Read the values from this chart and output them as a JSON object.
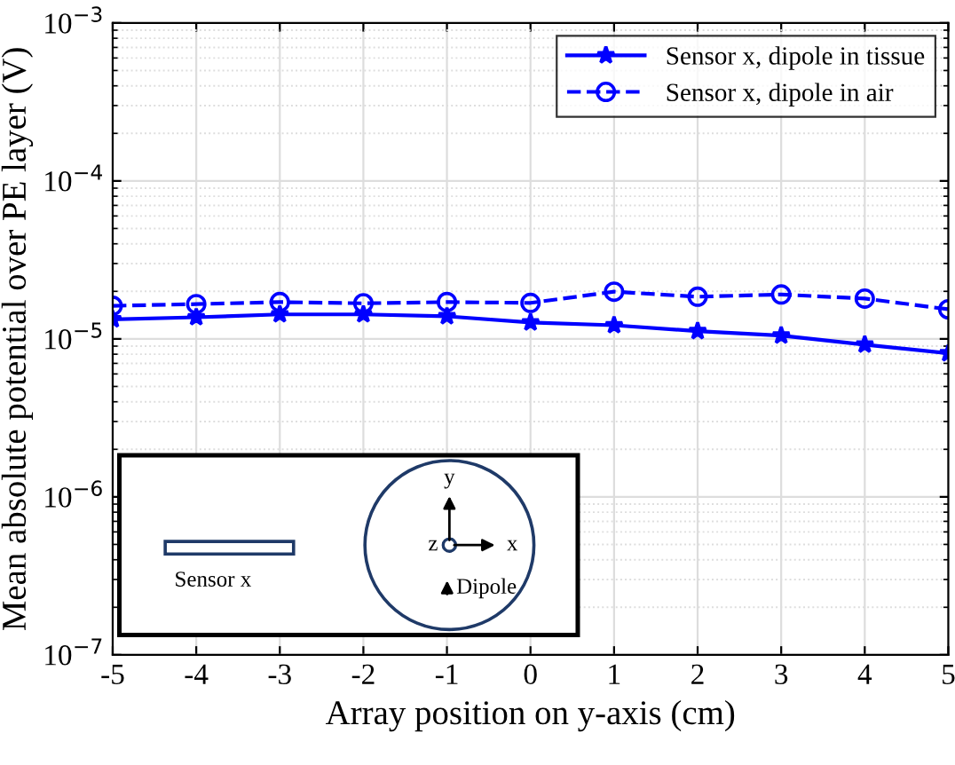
{
  "chart_data": {
    "type": "line",
    "xlabel": "Array position on y-axis (cm)",
    "ylabel": "Mean absolute potential over PE layer (V)",
    "x": [
      -5,
      -4,
      -3,
      -2,
      -1,
      0,
      1,
      2,
      3,
      4,
      5
    ],
    "series": [
      {
        "name": "Sensor x, dipole in tissue",
        "color": "#0000ff",
        "marker": "star",
        "line_style": "solid",
        "values": [
          1.33e-05,
          1.37e-05,
          1.43e-05,
          1.43e-05,
          1.39e-05,
          1.27e-05,
          1.22e-05,
          1.12e-05,
          1.05e-05,
          9.2e-06,
          8.1e-06
        ]
      },
      {
        "name": "Sensor x, dipole in air",
        "color": "#0000ff",
        "marker": "circle",
        "line_style": "dashed",
        "values": [
          1.62e-05,
          1.66e-05,
          1.71e-05,
          1.68e-05,
          1.71e-05,
          1.69e-05,
          1.99e-05,
          1.85e-05,
          1.91e-05,
          1.8e-05,
          1.54e-05
        ]
      }
    ],
    "log": "y",
    "xlim": [
      -5,
      5
    ],
    "xticks": [
      {
        "value": -5,
        "label": "-5"
      },
      {
        "value": -4,
        "label": "-4"
      },
      {
        "value": -3,
        "label": "-3"
      },
      {
        "value": -2,
        "label": "-2"
      },
      {
        "value": -1,
        "label": "-1"
      },
      0,
      1,
      2,
      3,
      4,
      5
    ],
    "ylim": [
      1e-07,
      0.001
    ],
    "yticks": [
      {
        "value": 1e-07,
        "label": "10$^{−7}$"
      },
      {
        "value": 1e-06,
        "label": "10$^{−6}$"
      },
      {
        "value": 1e-05,
        "label": "10$^{−5}$"
      },
      {
        "value": 0.0001,
        "label": "10$^{−4}$"
      },
      {
        "value": 0.001,
        "label": "10$^{−3}$"
      }
    ],
    "grid": true,
    "legend": "top right",
    "annotations": [
      "Sensor x",
      "y",
      "z",
      "x",
      "Dipole"
    ]
  }
}
